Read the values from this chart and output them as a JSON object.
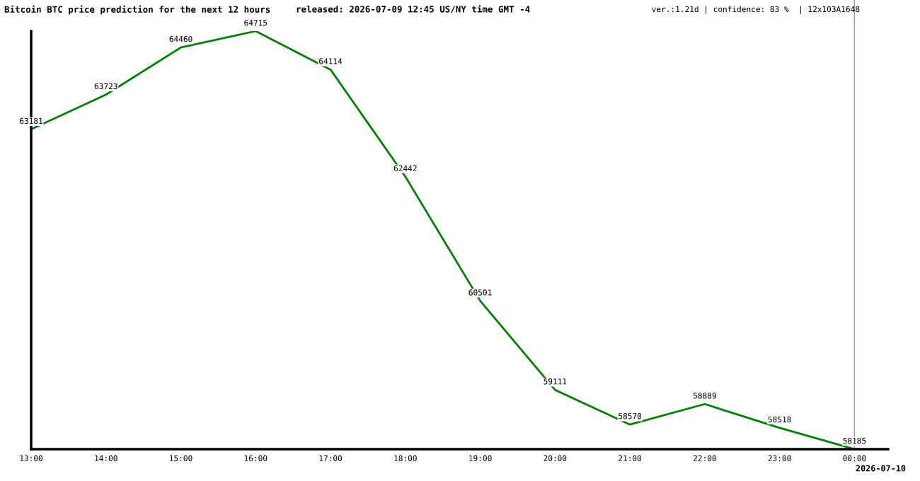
{
  "chart_data": {
    "type": "line",
    "title": "Bitcoin BTC price prediction for the next 12 hours",
    "subtitle": "released: 2026-07-09 12:45 US/NY time GMT -4",
    "annotations": [
      "ver.:1.21d | confidence: 83 %  | 12x103A1648",
      "2026-07-10"
    ],
    "x": [
      13,
      14,
      15,
      16,
      17,
      18,
      19,
      20,
      21,
      22,
      23,
      24
    ],
    "series": [
      {
        "color": "#008000",
        "values": [
          63181,
          63723,
          64460,
          64715,
          64114,
          62442,
          60501,
          59111,
          58570,
          58889,
          58518,
          58185
        ]
      }
    ],
    "xlim": [
      13,
      24.45
    ],
    "xticks": [
      {
        "value": 13,
        "label": "13:00"
      },
      {
        "value": 14,
        "label": "14:00"
      },
      {
        "value": 15,
        "label": "15:00"
      },
      {
        "value": 16,
        "label": "16:00"
      },
      {
        "value": 17,
        "label": "17:00"
      },
      {
        "value": 18,
        "label": "18:00"
      },
      {
        "value": 19,
        "label": "19:00"
      },
      {
        "value": 20,
        "label": "20:00"
      },
      {
        "value": 21,
        "label": "21:00"
      },
      {
        "value": 22,
        "label": "22:00"
      },
      {
        "value": 23,
        "label": "23:00"
      },
      {
        "value": 24,
        "label": "00:00"
      }
    ],
    "ylim": [
      58185,
      64715
    ],
    "tick_labels": "x",
    "ref_lines": [
      {
        "axis": "x",
        "value": 24,
        "color": "#999999"
      }
    ],
    "data_labels": true,
    "grid": false,
    "legend": false,
    "marker": "none",
    "line_style": "solid"
  }
}
